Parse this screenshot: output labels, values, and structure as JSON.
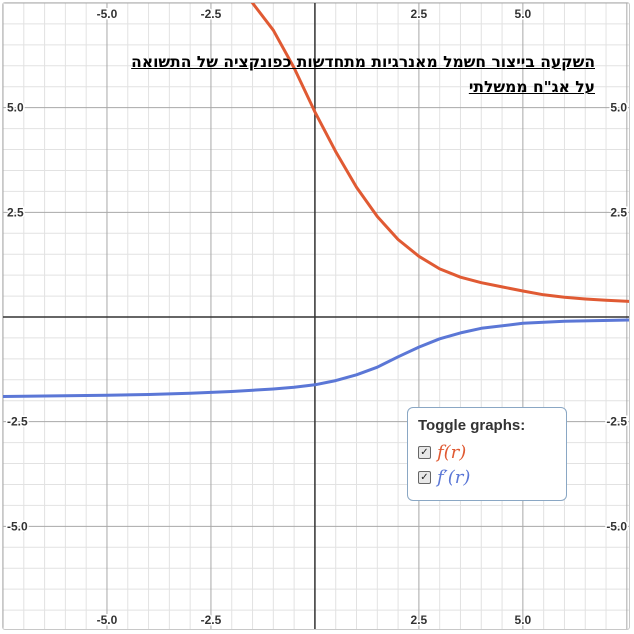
{
  "title": {
    "line1": "השקעה בייצור חשמל מאנרגיות מתחדשות כפונקציה של התשואה",
    "line2": "על אג\"ח ממשלתי"
  },
  "legend": {
    "heading": "Toggle graphs:",
    "items": [
      {
        "label": "f(r)",
        "checked": true,
        "color": "#e05a33"
      },
      {
        "label": "f′(r)",
        "checked": true,
        "color": "#5b77d6"
      }
    ]
  },
  "chart_data": {
    "type": "line",
    "xlim": [
      -7.5,
      7.6
    ],
    "ylim": [
      -7.5,
      7.5
    ],
    "grid": true,
    "legend_position": "bottom-right",
    "x_ticks": [
      "-5.0",
      "-2.5",
      "2.5",
      "5.0"
    ],
    "y_ticks": [
      "5.0",
      "2.5",
      "-2.5",
      "-5.0"
    ],
    "series": [
      {
        "name": "f(r)",
        "color": "#e05a33",
        "points": [
          [
            -1.5,
            7.5
          ],
          [
            -1.0,
            6.85
          ],
          [
            -0.5,
            5.95
          ],
          [
            0.0,
            4.9
          ],
          [
            0.5,
            3.95
          ],
          [
            1.0,
            3.1
          ],
          [
            1.5,
            2.4
          ],
          [
            2.0,
            1.85
          ],
          [
            2.5,
            1.45
          ],
          [
            3.0,
            1.15
          ],
          [
            3.5,
            0.95
          ],
          [
            4.0,
            0.82
          ],
          [
            4.5,
            0.72
          ],
          [
            5.0,
            0.62
          ],
          [
            5.5,
            0.53
          ],
          [
            6.0,
            0.47
          ],
          [
            6.5,
            0.43
          ],
          [
            7.0,
            0.4
          ],
          [
            7.6,
            0.37
          ]
        ]
      },
      {
        "name": "f′(r)",
        "color": "#5b77d6",
        "points": [
          [
            -7.5,
            -1.9
          ],
          [
            -6.0,
            -1.88
          ],
          [
            -5.0,
            -1.87
          ],
          [
            -4.0,
            -1.85
          ],
          [
            -3.0,
            -1.82
          ],
          [
            -2.0,
            -1.78
          ],
          [
            -1.0,
            -1.72
          ],
          [
            -0.5,
            -1.68
          ],
          [
            0.0,
            -1.62
          ],
          [
            0.5,
            -1.52
          ],
          [
            1.0,
            -1.38
          ],
          [
            1.5,
            -1.2
          ],
          [
            2.0,
            -0.95
          ],
          [
            2.5,
            -0.72
          ],
          [
            3.0,
            -0.52
          ],
          [
            3.5,
            -0.38
          ],
          [
            4.0,
            -0.27
          ],
          [
            5.0,
            -0.15
          ],
          [
            6.0,
            -0.1
          ],
          [
            7.6,
            -0.07
          ]
        ]
      }
    ]
  }
}
